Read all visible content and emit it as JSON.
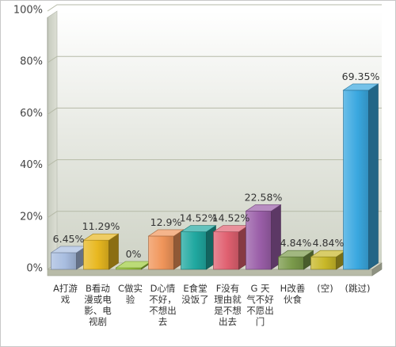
{
  "chart_data": {
    "type": "bar",
    "title": "",
    "xlabel": "",
    "ylabel": "",
    "ylim": [
      0,
      100
    ],
    "yticks": [
      "0%",
      "20%",
      "40%",
      "60%",
      "80%",
      "100%"
    ],
    "grid": true,
    "categories": [
      [
        "A打游",
        "戏"
      ],
      [
        "B看动",
        "漫或电",
        "影、电",
        "视剧"
      ],
      [
        "C做实",
        "验"
      ],
      [
        "D心情",
        "不好，",
        "不想出",
        "去"
      ],
      [
        "E食堂",
        "没饭了"
      ],
      [
        "F没有",
        "理由就",
        "是不想",
        "出去"
      ],
      [
        "G 天",
        "气不好",
        "不愿出",
        "门"
      ],
      [
        "H改善",
        "伙食"
      ],
      [
        "(空)"
      ],
      [
        "(跳过)"
      ]
    ],
    "values": [
      6.45,
      11.29,
      0,
      12.9,
      14.52,
      14.52,
      22.58,
      4.84,
      4.84,
      69.35
    ],
    "value_labels": [
      "6.45%",
      "11.29%",
      "0%",
      "12.9%",
      "14.52%",
      "14.52%",
      "22.58%",
      "4.84%",
      "4.84%",
      "69.35%"
    ],
    "colors": [
      "#a8bde0",
      "#e8b820",
      "#9ecb3c",
      "#f0955a",
      "#20a8a0",
      "#e06070",
      "#9a5ea8",
      "#7a9a4a",
      "#c8b828",
      "#3aa8e0"
    ]
  }
}
